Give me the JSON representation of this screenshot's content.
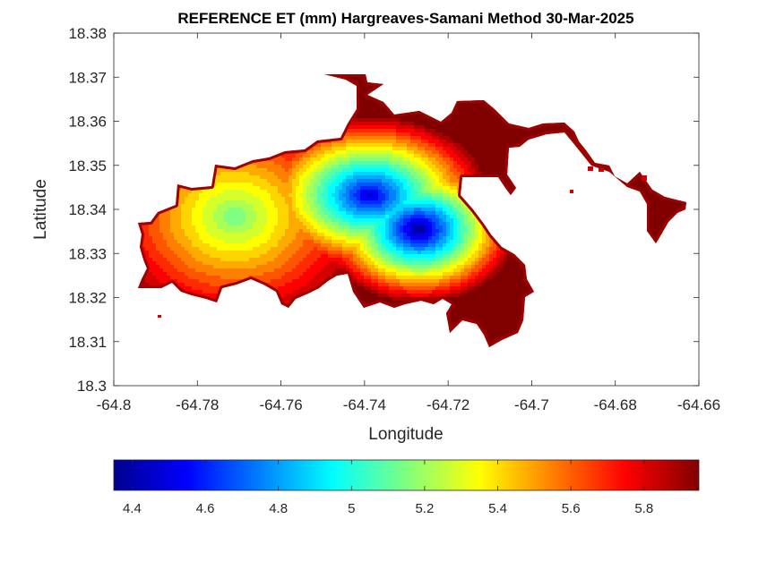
{
  "chart_data": {
    "type": "heatmap",
    "title": "REFERENCE ET (mm) Hargreaves-Samani Method  30-Mar-2025",
    "xlabel": "Longitude",
    "ylabel": "Latitude",
    "xlim": [
      -64.8,
      -64.66
    ],
    "ylim": [
      18.3,
      18.38
    ],
    "x_ticks": [
      "-64.8",
      "-64.78",
      "-64.76",
      "-64.74",
      "-64.72",
      "-64.7",
      "-64.68",
      "-64.66"
    ],
    "y_ticks": [
      "18.3",
      "18.31",
      "18.32",
      "18.33",
      "18.34",
      "18.35",
      "18.36",
      "18.37",
      "18.38"
    ],
    "colorbar": {
      "colormap": "jet",
      "range": [
        4.35,
        5.95
      ],
      "ticks": [
        "4.4",
        "4.6",
        "4.8",
        "5",
        "5.2",
        "5.4",
        "5.6",
        "5.8"
      ],
      "placement": "bottom"
    },
    "field": {
      "min_value": 4.35,
      "max_value": 5.95,
      "minimum_location": [
        -64.727,
        18.3355
      ],
      "coastal_value": 5.9
    },
    "grid": false
  }
}
